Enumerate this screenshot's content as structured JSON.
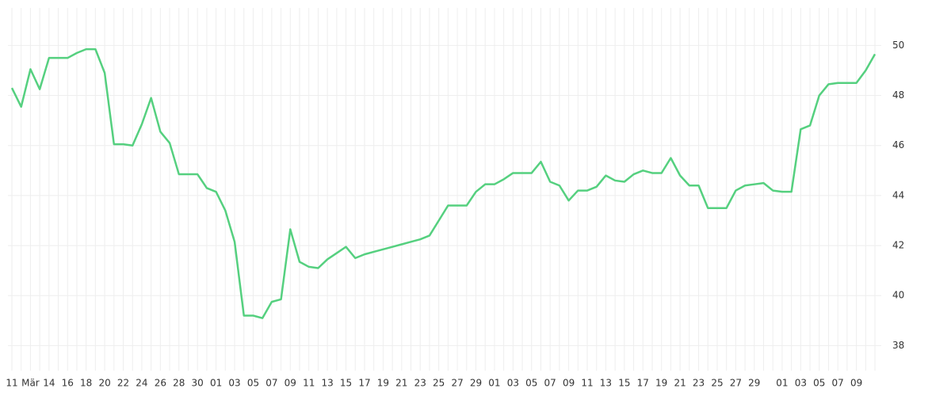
{
  "chart_data": {
    "type": "line",
    "categories": [
      "11",
      null,
      "Mär",
      null,
      "14",
      null,
      "16",
      null,
      "18",
      null,
      "20",
      null,
      "22",
      null,
      "24",
      null,
      "26",
      null,
      "28",
      null,
      "30",
      null,
      "01",
      null,
      "03",
      null,
      "05",
      null,
      "07",
      null,
      "09",
      null,
      "11",
      null,
      "13",
      null,
      "15",
      null,
      "17",
      null,
      "19",
      null,
      "21",
      null,
      "23",
      null,
      "25",
      null,
      "27",
      null,
      "29",
      null,
      "01",
      null,
      "03",
      null,
      "05",
      null,
      "07",
      null,
      "09",
      null,
      "11",
      null,
      "13",
      null,
      "15",
      null,
      "17",
      null,
      "19",
      null,
      "21",
      null,
      "23",
      null,
      "25",
      null,
      "27",
      null,
      "29",
      null,
      null,
      "01",
      null,
      "03",
      null,
      "05",
      null,
      "07",
      null,
      "09",
      null,
      null
    ],
    "values": [
      48.3,
      47.55,
      49.05,
      48.25,
      49.5,
      49.5,
      49.5,
      49.7,
      49.85,
      49.85,
      48.9,
      46.05,
      46.05,
      46.0,
      46.85,
      47.9,
      46.55,
      46.1,
      44.85,
      44.85,
      44.85,
      44.3,
      44.15,
      43.4,
      42.15,
      39.2,
      39.2,
      39.1,
      39.75,
      39.85,
      42.65,
      41.35,
      41.15,
      41.1,
      41.45,
      41.7,
      41.95,
      41.5,
      41.65,
      41.75,
      41.85,
      41.95,
      42.05,
      42.15,
      42.25,
      42.4,
      43.0,
      43.6,
      43.6,
      43.6,
      44.15,
      44.45,
      44.45,
      44.65,
      44.9,
      44.9,
      44.9,
      45.35,
      44.55,
      44.4,
      43.8,
      44.2,
      44.2,
      44.35,
      44.8,
      44.6,
      44.55,
      44.85,
      45.0,
      44.9,
      44.9,
      45.5,
      44.8,
      44.4,
      44.4,
      43.5,
      43.5,
      43.5,
      44.2,
      44.4,
      44.45,
      44.5,
      44.2,
      44.15,
      44.15,
      46.65,
      46.8,
      48.0,
      48.45,
      48.5,
      48.5,
      48.5,
      49.0,
      49.65
    ],
    "color": "#55d07f",
    "ylim": [
      37,
      51.5
    ],
    "yticks": [
      38,
      40,
      42,
      44,
      46,
      48,
      50
    ],
    "grid": true
  }
}
